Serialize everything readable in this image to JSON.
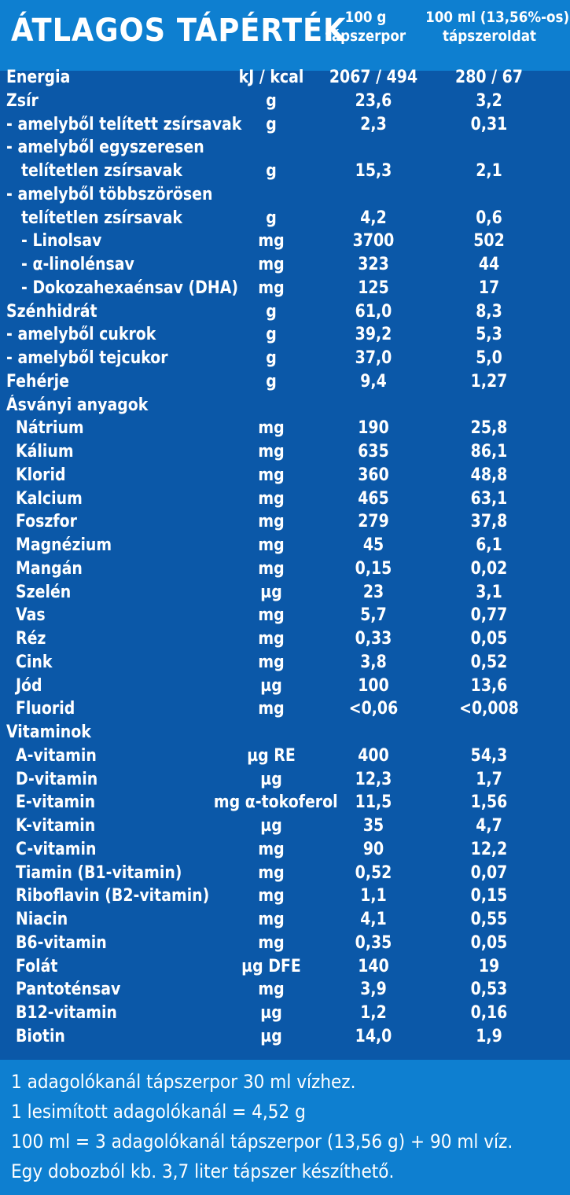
{
  "header": {
    "title": "ÁTLAGOS TÁPÉRTÉK",
    "col1_line1": "100 g",
    "col1_line2": "tápszerpor",
    "col2_line1": "100 ml (13,56%-os)",
    "col2_line2": "tápszeroldat"
  },
  "rows": [
    {
      "name": "Energia",
      "unit": "kJ / kcal",
      "v1": "2067 / 494",
      "v2": "280 / 67",
      "level": 0
    },
    {
      "name": "Zsír",
      "unit": "g",
      "v1": "23,6",
      "v2": "3,2",
      "level": 0
    },
    {
      "name": "- amelyből telített zsírsavak",
      "unit": "g",
      "v1": "2,3",
      "v2": "0,31",
      "level": 0
    },
    {
      "name": "- amelyből egyszeresen",
      "unit": "",
      "v1": "",
      "v2": "",
      "level": 0
    },
    {
      "name": "telítetlen zsírsavak",
      "unit": "g",
      "v1": "15,3",
      "v2": "2,1",
      "level": 2
    },
    {
      "name": "- amelyből többszörösen",
      "unit": "",
      "v1": "",
      "v2": "",
      "level": 0
    },
    {
      "name": "telítetlen zsírsavak",
      "unit": "g",
      "v1": "4,2",
      "v2": "0,6",
      "level": 2
    },
    {
      "name": "- Linolsav",
      "unit": "mg",
      "v1": "3700",
      "v2": "502",
      "level": 2
    },
    {
      "name": "- α-linolénsav",
      "unit": "mg",
      "v1": "323",
      "v2": "44",
      "level": 2
    },
    {
      "name": "- Dokozahexaénsav (DHA)",
      "unit": "mg",
      "v1": "125",
      "v2": "17",
      "level": 2
    },
    {
      "name": "Szénhidrát",
      "unit": "g",
      "v1": "61,0",
      "v2": "8,3",
      "level": 0
    },
    {
      "name": "- amelyből cukrok",
      "unit": "g",
      "v1": "39,2",
      "v2": "5,3",
      "level": 0
    },
    {
      "name": "- amelyből tejcukor",
      "unit": "g",
      "v1": "37,0",
      "v2": "5,0",
      "level": 0
    },
    {
      "name": "Fehérje",
      "unit": "g",
      "v1": "9,4",
      "v2": "1,27",
      "level": 0
    },
    {
      "name": "Ásványi anyagok",
      "unit": "",
      "v1": "",
      "v2": "",
      "level": 0
    },
    {
      "name": "Nátrium",
      "unit": "mg",
      "v1": "190",
      "v2": "25,8",
      "level": 1
    },
    {
      "name": "Kálium",
      "unit": "mg",
      "v1": "635",
      "v2": "86,1",
      "level": 1
    },
    {
      "name": "Klorid",
      "unit": "mg",
      "v1": "360",
      "v2": "48,8",
      "level": 1
    },
    {
      "name": "Kalcium",
      "unit": "mg",
      "v1": "465",
      "v2": "63,1",
      "level": 1
    },
    {
      "name": "Foszfor",
      "unit": "mg",
      "v1": "279",
      "v2": "37,8",
      "level": 1
    },
    {
      "name": "Magnézium",
      "unit": "mg",
      "v1": "45",
      "v2": "6,1",
      "level": 1
    },
    {
      "name": "Mangán",
      "unit": "mg",
      "v1": "0,15",
      "v2": "0,02",
      "level": 1
    },
    {
      "name": "Szelén",
      "unit": "µg",
      "v1": "23",
      "v2": "3,1",
      "level": 1
    },
    {
      "name": "Vas",
      "unit": "mg",
      "v1": "5,7",
      "v2": "0,77",
      "level": 1
    },
    {
      "name": "Réz",
      "unit": "mg",
      "v1": "0,33",
      "v2": "0,05",
      "level": 1
    },
    {
      "name": "Cink",
      "unit": "mg",
      "v1": "3,8",
      "v2": "0,52",
      "level": 1
    },
    {
      "name": "Jód",
      "unit": "µg",
      "v1": "100",
      "v2": "13,6",
      "level": 1
    },
    {
      "name": "Fluorid",
      "unit": "mg",
      "v1": "<0,06",
      "v2": "<0,008",
      "level": 1
    },
    {
      "name": "Vitaminok",
      "unit": "",
      "v1": "",
      "v2": "",
      "level": 0
    },
    {
      "name": "A-vitamin",
      "unit": "µg RE",
      "v1": "400",
      "v2": "54,3",
      "level": 1
    },
    {
      "name": "D-vitamin",
      "unit": "µg",
      "v1": "12,3",
      "v2": "1,7",
      "level": 1
    },
    {
      "name": "E-vitamin",
      "unit": "mg α-tokoferol",
      "v1": "11,5",
      "v2": "1,56",
      "level": 1
    },
    {
      "name": "K-vitamin",
      "unit": "µg",
      "v1": "35",
      "v2": "4,7",
      "level": 1
    },
    {
      "name": "C-vitamin",
      "unit": "mg",
      "v1": "90",
      "v2": "12,2",
      "level": 1
    },
    {
      "name": "Tiamin (B1-vitamin)",
      "unit": "mg",
      "v1": "0,52",
      "v2": "0,07",
      "level": 1
    },
    {
      "name": "Riboflavin (B2-vitamin)",
      "unit": "mg",
      "v1": "1,1",
      "v2": "0,15",
      "level": 1
    },
    {
      "name": "Niacin",
      "unit": "mg",
      "v1": "4,1",
      "v2": "0,55",
      "level": 1
    },
    {
      "name": "B6-vitamin",
      "unit": "mg",
      "v1": "0,35",
      "v2": "0,05",
      "level": 1
    },
    {
      "name": "Folát",
      "unit": "µg DFE",
      "v1": "140",
      "v2": "19",
      "level": 1
    },
    {
      "name": "Pantoténsav",
      "unit": "mg",
      "v1": "3,9",
      "v2": "0,53",
      "level": 1
    },
    {
      "name": "B12-vitamin",
      "unit": "µg",
      "v1": "1,2",
      "v2": "0,16",
      "level": 1
    },
    {
      "name": "Biotin",
      "unit": "µg",
      "v1": "14,0",
      "v2": "1,9",
      "level": 1
    }
  ],
  "footer": {
    "lines": [
      "1 adagolókanál tápszerpor 30 ml vízhez.",
      "1 lesimított adagolókanál = 4,52 g",
      "100 ml = 3 adagolókanál tápszerpor (13,56 g) + 90 ml víz.",
      "Egy dobozból kb. 3,7 liter tápszer készíthető."
    ]
  },
  "colors": {
    "background": "#0b58a8",
    "header_band": "#0e7fd0",
    "text": "#ffffff"
  }
}
